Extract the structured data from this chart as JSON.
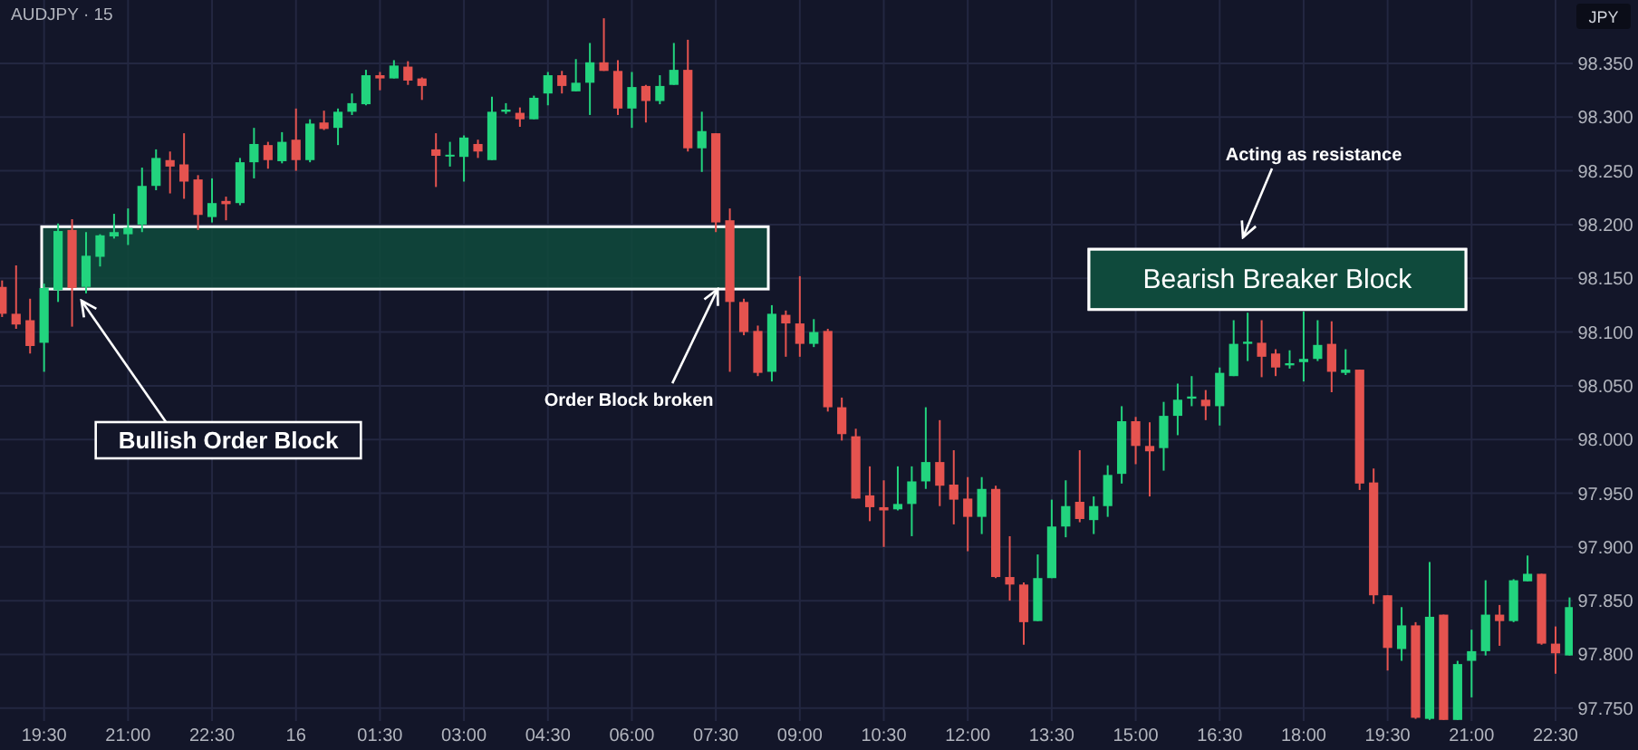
{
  "chart_data": {
    "type": "candlestick",
    "title": "AUDJPY · 15",
    "ylabel": "JPY",
    "categories": [
      null,
      null,
      null,
      "19:30",
      null,
      null,
      null,
      null,
      null,
      "21:00",
      null,
      null,
      null,
      null,
      null,
      "22:30",
      null,
      null,
      null,
      null,
      null,
      "16",
      null,
      null,
      null,
      null,
      null,
      "01:30",
      null,
      null,
      null,
      null,
      null,
      "03:00",
      null,
      null,
      null,
      null,
      null,
      "04:30",
      null,
      null,
      null,
      null,
      null,
      "06:00",
      null,
      null,
      null,
      null,
      null,
      "07:30",
      null,
      null,
      null,
      null,
      null,
      "09:00",
      null,
      null,
      null,
      null,
      null,
      "10:30",
      null,
      null,
      null,
      null,
      null,
      "12:00",
      null,
      null,
      null,
      null,
      null,
      "13:30",
      null,
      null,
      null,
      null,
      null,
      "15:00",
      null,
      null,
      null,
      null,
      null,
      "16:30",
      null,
      null,
      null,
      null,
      null,
      "18:00",
      null,
      null,
      null,
      null,
      null,
      "19:30",
      null,
      null,
      null,
      null,
      null,
      "21:00",
      null,
      null,
      null,
      null,
      null,
      "22:30",
      null
    ],
    "ohlc": [
      [
        98.142,
        98.148,
        98.114,
        98.117
      ],
      [
        98.117,
        98.162,
        98.103,
        98.107
      ],
      [
        98.111,
        98.131,
        98.08,
        98.087
      ],
      [
        98.09,
        98.145,
        98.063,
        98.141
      ],
      [
        98.139,
        98.201,
        98.128,
        98.194
      ],
      [
        98.195,
        98.205,
        98.105,
        98.141
      ],
      [
        98.142,
        98.193,
        98.136,
        98.171
      ],
      [
        98.17,
        98.191,
        98.161,
        98.19
      ],
      [
        98.189,
        98.21,
        98.187,
        98.193
      ],
      [
        98.191,
        98.215,
        98.181,
        98.197
      ],
      [
        98.2,
        98.253,
        98.193,
        98.236
      ],
      [
        98.236,
        98.27,
        98.232,
        98.262
      ],
      [
        98.26,
        98.268,
        98.229,
        98.254
      ],
      [
        98.256,
        98.285,
        98.224,
        98.24
      ],
      [
        98.242,
        98.246,
        98.195,
        98.209
      ],
      [
        98.207,
        98.243,
        98.202,
        98.22
      ],
      [
        98.222,
        98.226,
        98.204,
        98.219
      ],
      [
        98.22,
        98.262,
        98.218,
        98.258
      ],
      [
        98.258,
        98.29,
        98.243,
        98.275
      ],
      [
        98.274,
        98.277,
        98.252,
        98.26
      ],
      [
        98.259,
        98.286,
        98.257,
        98.277
      ],
      [
        98.279,
        98.308,
        98.25,
        98.26
      ],
      [
        98.26,
        98.298,
        98.258,
        98.294
      ],
      [
        98.295,
        98.306,
        98.288,
        98.289
      ],
      [
        98.29,
        98.308,
        98.274,
        98.305
      ],
      [
        98.305,
        98.322,
        98.302,
        98.313
      ],
      [
        98.312,
        98.344,
        98.311,
        98.339
      ],
      [
        98.339,
        98.342,
        98.325,
        98.336
      ],
      [
        98.336,
        98.353,
        98.336,
        98.348
      ],
      [
        98.347,
        98.352,
        98.33,
        98.334
      ],
      [
        98.336,
        98.337,
        98.316,
        98.329
      ],
      [
        98.27,
        98.285,
        98.235,
        98.264
      ],
      [
        98.264,
        98.277,
        98.254,
        98.265
      ],
      [
        98.263,
        98.283,
        98.24,
        98.281
      ],
      [
        98.275,
        98.279,
        98.262,
        98.268
      ],
      [
        98.26,
        98.319,
        98.26,
        98.305
      ],
      [
        98.305,
        98.313,
        98.303,
        98.307
      ],
      [
        98.304,
        98.309,
        98.291,
        98.298
      ],
      [
        98.298,
        98.32,
        98.298,
        98.318
      ],
      [
        98.322,
        98.342,
        98.311,
        98.339
      ],
      [
        98.339,
        98.343,
        98.322,
        98.329
      ],
      [
        98.324,
        98.354,
        98.324,
        98.332
      ],
      [
        98.332,
        98.369,
        98.302,
        98.351
      ],
      [
        98.351,
        98.392,
        98.343,
        98.343
      ],
      [
        98.343,
        98.353,
        98.302,
        98.308
      ],
      [
        98.308,
        98.342,
        98.29,
        98.328
      ],
      [
        98.329,
        98.33,
        98.295,
        98.315
      ],
      [
        98.315,
        98.339,
        98.312,
        98.329
      ],
      [
        98.33,
        98.369,
        98.33,
        98.344
      ],
      [
        98.344,
        98.372,
        98.268,
        98.271
      ],
      [
        98.271,
        98.305,
        98.249,
        98.287
      ],
      [
        98.285,
        98.285,
        98.193,
        98.202
      ],
      [
        98.204,
        98.215,
        98.063,
        98.128
      ],
      [
        98.128,
        98.131,
        98.097,
        98.1
      ],
      [
        98.101,
        98.106,
        98.059,
        98.062
      ],
      [
        98.063,
        98.125,
        98.054,
        98.117
      ],
      [
        98.116,
        98.12,
        98.077,
        98.108
      ],
      [
        98.108,
        98.152,
        98.077,
        98.089
      ],
      [
        98.089,
        98.112,
        98.086,
        98.1
      ],
      [
        98.101,
        98.103,
        98.026,
        98.03
      ],
      [
        98.03,
        98.039,
        97.999,
        98.005
      ],
      [
        98.003,
        98.01,
        97.945,
        97.945
      ],
      [
        97.948,
        97.975,
        97.924,
        97.937
      ],
      [
        97.937,
        97.962,
        97.9,
        97.934
      ],
      [
        97.935,
        97.975,
        97.934,
        97.94
      ],
      [
        97.94,
        97.975,
        97.91,
        97.961
      ],
      [
        97.961,
        98.03,
        97.954,
        97.979
      ],
      [
        97.979,
        98.018,
        97.938,
        97.957
      ],
      [
        97.958,
        97.99,
        97.921,
        97.944
      ],
      [
        97.945,
        97.965,
        97.896,
        97.928
      ],
      [
        97.928,
        97.965,
        97.912,
        97.954
      ],
      [
        97.954,
        97.957,
        97.871,
        97.872
      ],
      [
        97.872,
        97.91,
        97.85,
        97.865
      ],
      [
        97.865,
        97.867,
        97.809,
        97.83
      ],
      [
        97.831,
        97.893,
        97.831,
        97.871
      ],
      [
        97.871,
        97.944,
        97.871,
        97.919
      ],
      [
        97.919,
        97.962,
        97.909,
        97.938
      ],
      [
        97.942,
        97.99,
        97.923,
        97.926
      ],
      [
        97.925,
        97.947,
        97.912,
        97.938
      ],
      [
        97.938,
        97.976,
        97.928,
        97.967
      ],
      [
        97.968,
        98.031,
        97.959,
        98.017
      ],
      [
        98.017,
        98.021,
        97.977,
        97.994
      ],
      [
        97.994,
        98.016,
        97.947,
        97.989
      ],
      [
        97.992,
        98.035,
        97.971,
        98.022
      ],
      [
        98.022,
        98.052,
        98.004,
        98.037
      ],
      [
        98.038,
        98.059,
        98.031,
        98.04
      ],
      [
        98.037,
        98.046,
        98.018,
        98.031
      ],
      [
        98.031,
        98.067,
        98.013,
        98.062
      ],
      [
        98.059,
        98.111,
        98.059,
        98.089
      ],
      [
        98.089,
        98.118,
        98.073,
        98.091
      ],
      [
        98.09,
        98.111,
        98.058,
        98.077
      ],
      [
        98.08,
        98.084,
        98.059,
        98.067
      ],
      [
        98.069,
        98.083,
        98.066,
        98.071
      ],
      [
        98.072,
        98.119,
        98.054,
        98.075
      ],
      [
        98.075,
        98.111,
        98.073,
        98.088
      ],
      [
        98.089,
        98.11,
        98.044,
        98.063
      ],
      [
        98.062,
        98.084,
        98.06,
        98.065
      ],
      [
        98.065,
        98.065,
        97.953,
        97.959
      ],
      [
        97.96,
        97.973,
        97.847,
        97.855
      ],
      [
        97.855,
        97.855,
        97.785,
        97.806
      ],
      [
        97.805,
        97.844,
        97.794,
        97.827
      ],
      [
        97.827,
        97.83,
        97.74,
        97.741
      ],
      [
        97.74,
        97.886,
        97.739,
        97.835
      ],
      [
        97.837,
        97.837,
        97.739,
        97.739
      ],
      [
        97.739,
        97.794,
        97.739,
        97.791
      ],
      [
        97.794,
        97.823,
        97.76,
        97.803
      ],
      [
        97.803,
        97.869,
        97.799,
        97.837
      ],
      [
        97.837,
        97.846,
        97.808,
        97.831
      ],
      [
        97.831,
        97.87,
        97.83,
        97.869
      ],
      [
        97.868,
        97.892,
        97.868,
        97.875
      ],
      [
        97.875,
        97.875,
        97.809,
        97.81
      ],
      [
        97.81,
        97.826,
        97.782,
        97.801
      ],
      [
        97.799,
        97.853,
        97.799,
        97.844
      ]
    ],
    "colors": [
      "#e5534f",
      "#e5534f",
      "#e5534f",
      "#22d47e",
      "#22d47e",
      "#e5534f",
      "#22d47e",
      "#22d47e",
      "#22d47e",
      "#22d47e",
      "#22d47e",
      "#22d47e",
      "#e5534f",
      "#e5534f",
      "#e5534f",
      "#22d47e",
      "#e5534f",
      "#22d47e",
      "#22d47e",
      "#e5534f",
      "#22d47e",
      "#e5534f",
      "#22d47e",
      "#e5534f",
      "#22d47e",
      "#22d47e",
      "#22d47e",
      "#e5534f",
      "#22d47e",
      "#e5534f",
      "#e5534f",
      "#e5534f",
      "#22d47e",
      "#22d47e",
      "#e5534f",
      "#22d47e",
      "#22d47e",
      "#e5534f",
      "#22d47e",
      "#22d47e",
      "#e5534f",
      "#22d47e",
      "#22d47e",
      "#e5534f",
      "#e5534f",
      "#22d47e",
      "#e5534f",
      "#22d47e",
      "#22d47e",
      "#e5534f",
      "#22d47e",
      "#e5534f",
      "#e5534f",
      "#e5534f",
      "#e5534f",
      "#22d47e",
      "#e5534f",
      "#e5534f",
      "#22d47e",
      "#e5534f",
      "#e5534f",
      "#e5534f",
      "#e5534f",
      "#e5534f",
      "#22d47e",
      "#22d47e",
      "#22d47e",
      "#e5534f",
      "#e5534f",
      "#e5534f",
      "#22d47e",
      "#e5534f",
      "#e5534f",
      "#e5534f",
      "#22d47e",
      "#22d47e",
      "#22d47e",
      "#e5534f",
      "#22d47e",
      "#22d47e",
      "#22d47e",
      "#e5534f",
      "#e5534f",
      "#22d47e",
      "#22d47e",
      "#22d47e",
      "#e5534f",
      "#22d47e",
      "#22d47e",
      "#22d47e",
      "#e5534f",
      "#e5534f",
      "#22d47e",
      "#22d47e",
      "#22d47e",
      "#e5534f",
      "#22d47e",
      "#e5534f",
      "#e5534f",
      "#e5534f",
      "#22d47e",
      "#e5534f",
      "#22d47e",
      "#e5534f",
      "#22d47e",
      "#22d47e",
      "#22d47e",
      "#e5534f",
      "#22d47e",
      "#22d47e",
      "#e5534f",
      "#e5534f",
      "#22d47e"
    ],
    "ylim": [
      97.738,
      98.409
    ],
    "yticks": [
      {
        "value": 97.75,
        "label": "97.750"
      },
      {
        "value": 97.8,
        "label": "97.800"
      },
      {
        "value": 97.85,
        "label": "97.850"
      },
      {
        "value": 97.9,
        "label": "97.900"
      },
      {
        "value": 97.95,
        "label": "97.950"
      },
      {
        "value": 98,
        "label": "98.000"
      },
      {
        "value": 98.05,
        "label": "98.050"
      },
      {
        "value": 98.1,
        "label": "98.100"
      },
      {
        "value": 98.15,
        "label": "98.150"
      },
      {
        "value": 98.2,
        "label": "98.200"
      },
      {
        "value": 98.25,
        "label": "98.250"
      },
      {
        "value": 98.3,
        "label": "98.300"
      },
      {
        "value": 98.35,
        "label": "98.350"
      }
    ],
    "grid": true,
    "bands": [
      {
        "axis": "y",
        "from": 98.14,
        "to": 98.198,
        "color": "#0f4a3c"
      },
      {
        "axis": "y",
        "from": 98.121,
        "to": 98.177,
        "label": "Bearish Breaker Block",
        "color": "#0f4a3c"
      }
    ],
    "annotations": [
      "Bullish Order Block",
      {
        "text": "Order Block broken",
        "x": "07:30",
        "y": 98.14
      },
      "Acting as resistance"
    ]
  }
}
